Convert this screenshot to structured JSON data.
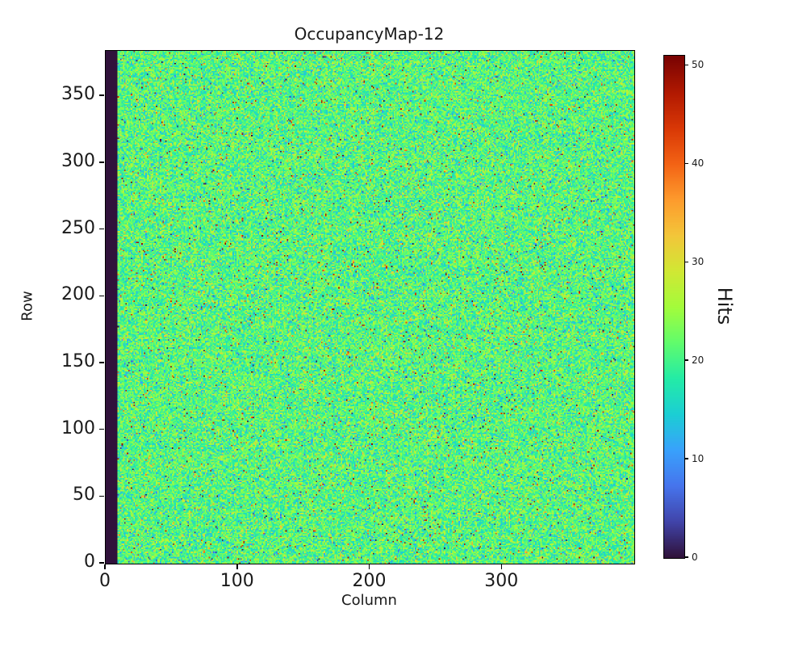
{
  "figure": {
    "background": "#ffffff"
  },
  "chart_data": {
    "type": "heatmap",
    "title": "OccupancyMap-12",
    "xlabel": "Column",
    "ylabel": "Row",
    "grid_cols": 400,
    "grid_rows": 384,
    "xlim": [
      0,
      400
    ],
    "ylim": [
      0,
      384
    ],
    "x_ticks": [
      0,
      100,
      200,
      300
    ],
    "y_ticks": [
      0,
      50,
      100,
      150,
      200,
      250,
      300,
      350
    ],
    "grid": false,
    "colorbar": {
      "label": "Hits",
      "ticks": [
        0,
        10,
        20,
        30,
        40,
        50
      ],
      "vmin": 0,
      "vmax": 51,
      "position": "right"
    },
    "colormap": {
      "name": "turbo",
      "stops": [
        "#30123b",
        "#4145ab",
        "#4675ed",
        "#39a2fc",
        "#1bcfd4",
        "#24eca6",
        "#61fc6c",
        "#a4fc3b",
        "#d1e834",
        "#f3c63a",
        "#fe9b2d",
        "#f36315",
        "#d93806",
        "#b11901",
        "#7a0402"
      ]
    },
    "data_model": {
      "description": "Per-pixel hit occupancy map: uniform Poisson-like noise around ~21 hits (teal-green) over the full 400x384 matrix, with sparse hot pixels (yellow/orange/red up to 51) and sparse cold/dark pixels, plus a fully dead (0-hit, dark) column band at the left edge covering roughly columns 0-8.",
      "mean_hits": 21,
      "std_hits": 4.2,
      "hot_pixel_fraction": 0.02,
      "hot_pixel_range": [
        30,
        51
      ],
      "cold_pixel_fraction": 0.01,
      "cold_pixel_range": [
        0,
        12
      ],
      "dead_column_range": [
        0,
        9
      ],
      "dead_column_value": 0,
      "seed": 12
    }
  }
}
